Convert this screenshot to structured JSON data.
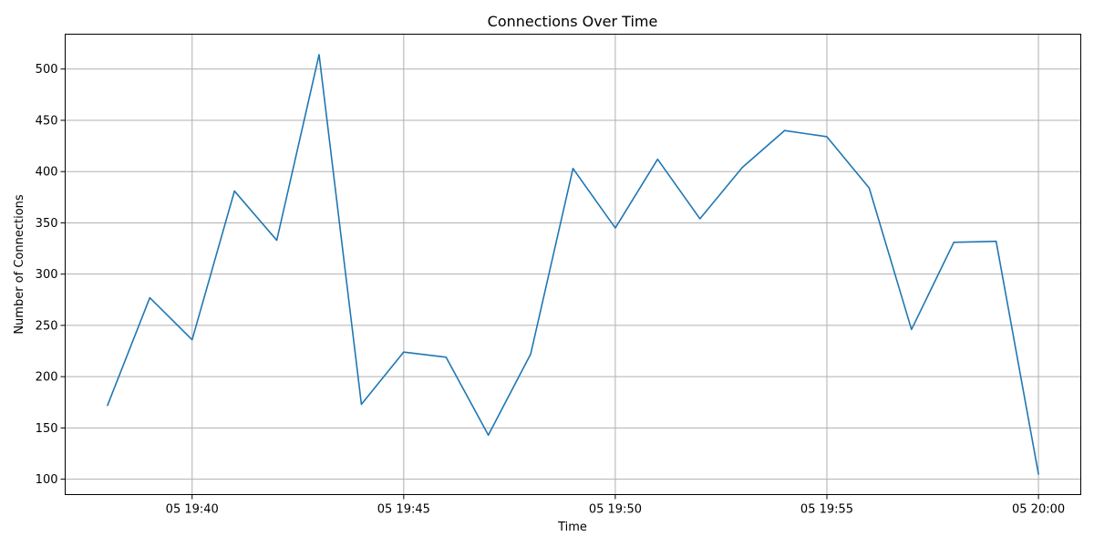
{
  "chart_data": {
    "type": "line",
    "title": "Connections Over Time",
    "xlabel": "Time",
    "ylabel": "Number of Connections",
    "grid": true,
    "x": [
      "19:38",
      "19:39",
      "19:40",
      "19:41",
      "19:42",
      "19:43",
      "19:44",
      "19:45",
      "19:46",
      "19:47",
      "19:48",
      "19:49",
      "19:50",
      "19:51",
      "19:52",
      "19:53",
      "19:54",
      "19:55",
      "19:56",
      "19:57",
      "19:58",
      "19:59",
      "20:00"
    ],
    "series": [
      {
        "values": [
          172,
          277,
          236,
          381,
          333,
          514,
          173,
          224,
          219,
          143,
          222,
          403,
          345,
          412,
          354,
          404,
          440,
          434,
          384,
          246,
          331,
          332,
          105
        ],
        "color": "#1f77b4"
      }
    ],
    "xlim": [
      "19:37",
      "20:01"
    ],
    "ylim": [
      85,
      534
    ],
    "x_ticks": [
      "19:40",
      "19:45",
      "19:50",
      "19:55",
      "20:00"
    ],
    "x_tick_labels": [
      "05 19:40",
      "05 19:45",
      "05 19:50",
      "05 19:55",
      "05 20:00"
    ],
    "y_ticks": [
      100,
      150,
      200,
      250,
      300,
      350,
      400,
      450,
      500
    ]
  }
}
